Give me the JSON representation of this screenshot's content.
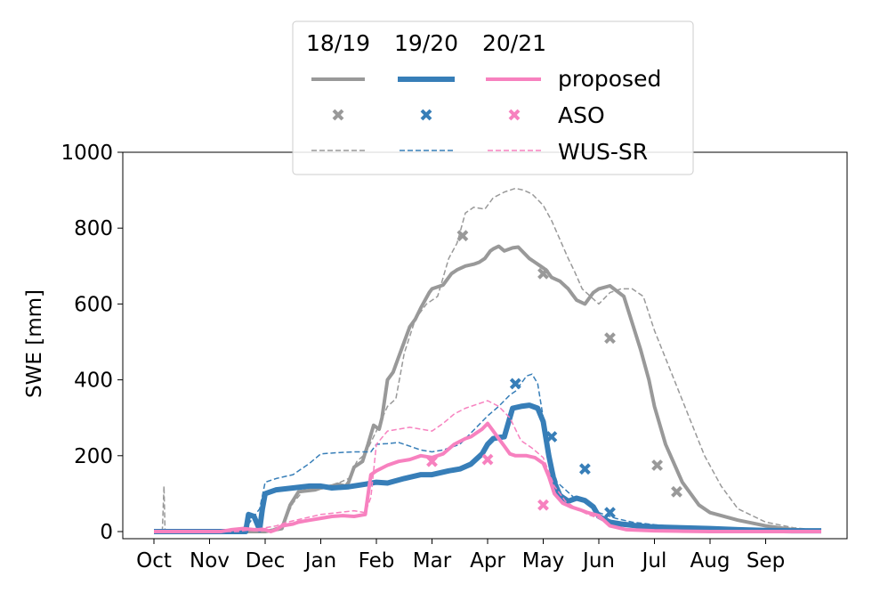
{
  "chart_data": {
    "type": "line",
    "title": "",
    "xlabel": "",
    "ylabel": "SWE [mm]",
    "ylim": [
      0,
      1000
    ],
    "yticks": [
      0,
      200,
      400,
      600,
      800,
      1000
    ],
    "xticks": [
      "Oct",
      "Nov",
      "Dec",
      "Jan",
      "Feb",
      "Mar",
      "Apr",
      "May",
      "Jun",
      "Jul",
      "Aug",
      "Sep"
    ],
    "grid": false,
    "legend": {
      "placement": "top-center",
      "column_headers": [
        "18/19",
        "19/20",
        "20/21"
      ],
      "row_labels": [
        "proposed",
        "ASO",
        "WUS-SR"
      ]
    },
    "colors": {
      "18/19": "#999999",
      "19/20": "#377eb8",
      "20/21": "#f781bf"
    },
    "series": [
      {
        "year": "18/19",
        "method": "proposed",
        "style": "solid",
        "x": [
          0,
          0.5,
          1,
          1.5,
          2,
          2.3,
          2.45,
          2.6,
          2.9,
          3.0,
          3.2,
          3.3,
          3.45,
          3.5,
          3.6,
          3.75,
          3.85,
          3.95,
          4.05,
          4.1,
          4.2,
          4.3,
          4.4,
          4.5,
          4.6,
          4.7,
          4.8,
          4.95,
          5.0,
          5.2,
          5.35,
          5.45,
          5.6,
          5.75,
          5.85,
          5.95,
          6.05,
          6.1,
          6.2,
          6.3,
          6.45,
          6.55,
          6.65,
          6.75,
          6.85,
          6.95,
          7.05,
          7.15,
          7.3,
          7.45,
          7.6,
          7.75,
          7.9,
          8.0,
          8.2,
          8.45,
          8.6,
          8.75,
          8.9,
          9.0,
          9.2,
          9.5,
          9.8,
          10,
          10.5,
          11,
          11.5,
          12
        ],
        "y": [
          0,
          0,
          0,
          0,
          0,
          8,
          70,
          105,
          110,
          115,
          120,
          125,
          120,
          130,
          170,
          185,
          230,
          280,
          270,
          300,
          400,
          420,
          460,
          500,
          540,
          560,
          590,
          630,
          640,
          650,
          680,
          690,
          700,
          705,
          710,
          720,
          740,
          745,
          752,
          740,
          748,
          750,
          735,
          720,
          710,
          700,
          690,
          670,
          660,
          640,
          610,
          600,
          630,
          640,
          648,
          620,
          550,
          480,
          400,
          330,
          230,
          130,
          70,
          50,
          30,
          15,
          5,
          2
        ]
      },
      {
        "year": "18/19",
        "method": "WUS-SR",
        "style": "dashed",
        "x": [
          0,
          0.15,
          0.18,
          0.2,
          0.3,
          0.5,
          1,
          1.5,
          2,
          2.3,
          2.5,
          2.7,
          3.0,
          3.2,
          3.5,
          3.65,
          3.8,
          4.0,
          4.2,
          4.35,
          4.5,
          4.7,
          4.9,
          5.1,
          5.3,
          5.45,
          5.6,
          5.75,
          5.95,
          6.1,
          6.3,
          6.5,
          6.65,
          6.8,
          7.0,
          7.15,
          7.3,
          7.45,
          7.55,
          7.7,
          7.85,
          8.0,
          8.2,
          8.4,
          8.6,
          8.8,
          9.0,
          9.3,
          9.6,
          9.9,
          10.2,
          10.5,
          11,
          11.5,
          12
        ],
        "y": [
          0,
          0,
          120,
          0,
          0,
          0,
          0,
          0,
          0,
          15,
          75,
          110,
          115,
          120,
          140,
          185,
          205,
          265,
          330,
          350,
          470,
          560,
          600,
          620,
          720,
          760,
          840,
          855,
          850,
          880,
          895,
          905,
          900,
          890,
          860,
          820,
          770,
          720,
          690,
          640,
          620,
          600,
          630,
          640,
          640,
          620,
          530,
          420,
          310,
          200,
          120,
          60,
          25,
          10,
          3
        ]
      },
      {
        "year": "19/20",
        "method": "proposed",
        "style": "solid",
        "x": [
          0,
          0.5,
          1,
          1.3,
          1.5,
          1.65,
          1.7,
          1.8,
          1.9,
          1.95,
          2.0,
          2.2,
          2.5,
          2.8,
          3.0,
          3.2,
          3.5,
          3.8,
          4.0,
          4.2,
          4.5,
          4.8,
          5.0,
          5.3,
          5.5,
          5.7,
          5.9,
          6.0,
          6.1,
          6.2,
          6.3,
          6.45,
          6.6,
          6.75,
          6.9,
          7.0,
          7.1,
          7.2,
          7.3,
          7.45,
          7.6,
          7.75,
          7.9,
          8.0,
          8.2,
          8.4,
          8.7,
          9.0,
          9.5,
          10,
          10.5,
          11,
          11.5,
          12
        ],
        "y": [
          0,
          0,
          0,
          0,
          0,
          0,
          45,
          40,
          5,
          60,
          100,
          110,
          115,
          120,
          120,
          115,
          118,
          125,
          130,
          128,
          140,
          150,
          150,
          160,
          165,
          178,
          205,
          230,
          245,
          248,
          250,
          325,
          330,
          333,
          325,
          290,
          200,
          130,
          95,
          80,
          88,
          82,
          65,
          40,
          25,
          20,
          15,
          12,
          10,
          8,
          5,
          3,
          2,
          2
        ]
      },
      {
        "year": "19/20",
        "method": "WUS-SR",
        "style": "dashed",
        "x": [
          0,
          0.5,
          1,
          1.5,
          1.7,
          1.9,
          2.0,
          2.2,
          2.5,
          2.8,
          3.0,
          3.3,
          3.6,
          3.9,
          4.0,
          4.2,
          4.4,
          4.6,
          4.8,
          5.0,
          5.2,
          5.5,
          5.8,
          6.0,
          6.2,
          6.4,
          6.5,
          6.6,
          6.7,
          6.8,
          6.9,
          7.0,
          7.1,
          7.25,
          7.4,
          7.55,
          7.7,
          7.85,
          8.0,
          8.3,
          8.6,
          9.0,
          9.5,
          10,
          10.5,
          11,
          11.5,
          12
        ],
        "y": [
          0,
          0,
          0,
          0,
          20,
          60,
          130,
          140,
          150,
          180,
          205,
          208,
          210,
          210,
          230,
          232,
          235,
          225,
          215,
          210,
          215,
          230,
          275,
          305,
          330,
          360,
          370,
          390,
          410,
          415,
          390,
          300,
          200,
          130,
          110,
          90,
          80,
          70,
          50,
          35,
          25,
          18,
          12,
          8,
          5,
          3,
          2,
          2
        ]
      },
      {
        "year": "20/21",
        "method": "proposed",
        "style": "solid",
        "x": [
          0,
          0.5,
          1,
          1.2,
          1.4,
          1.6,
          1.8,
          2.0,
          2.1,
          2.2,
          2.3,
          2.5,
          2.6,
          2.8,
          3.0,
          3.2,
          3.4,
          3.6,
          3.8,
          3.9,
          4.0,
          4.2,
          4.4,
          4.6,
          4.8,
          5.0,
          5.2,
          5.4,
          5.6,
          5.7,
          5.8,
          5.9,
          6.0,
          6.1,
          6.2,
          6.3,
          6.4,
          6.5,
          6.7,
          6.85,
          7.0,
          7.1,
          7.2,
          7.35,
          7.5,
          7.65,
          7.8,
          8.0,
          8.2,
          8.5,
          9.0,
          9.5,
          10,
          11,
          12
        ],
        "y": [
          0,
          0,
          0,
          0,
          5,
          8,
          5,
          5,
          0,
          5,
          15,
          20,
          25,
          30,
          35,
          40,
          42,
          40,
          45,
          150,
          160,
          175,
          185,
          190,
          200,
          195,
          205,
          230,
          245,
          250,
          260,
          270,
          285,
          265,
          245,
          225,
          205,
          200,
          200,
          195,
          180,
          145,
          100,
          75,
          65,
          58,
          50,
          42,
          15,
          5,
          2,
          1,
          0,
          0,
          0
        ]
      },
      {
        "year": "20/21",
        "method": "WUS-SR",
        "style": "dashed",
        "x": [
          0,
          0.5,
          1,
          1.5,
          2.0,
          2.2,
          2.4,
          2.7,
          3.0,
          3.3,
          3.6,
          3.8,
          3.9,
          4.0,
          4.2,
          4.4,
          4.6,
          4.8,
          5.0,
          5.2,
          5.4,
          5.6,
          5.8,
          6.0,
          6.2,
          6.4,
          6.6,
          6.8,
          7.0,
          7.2,
          7.4,
          7.6,
          7.8,
          8.0,
          8.2,
          8.5,
          9.0,
          10,
          11,
          12
        ],
        "y": [
          0,
          0,
          0,
          0,
          10,
          15,
          25,
          35,
          45,
          50,
          55,
          50,
          90,
          230,
          265,
          270,
          275,
          270,
          265,
          285,
          310,
          325,
          335,
          345,
          330,
          300,
          240,
          220,
          195,
          120,
          80,
          60,
          45,
          35,
          15,
          5,
          2,
          0,
          0,
          0
        ]
      }
    ],
    "aso": [
      {
        "year": "18/19",
        "x": [
          5.55,
          7.0,
          8.2,
          9.05,
          9.4
        ],
        "y": [
          780,
          680,
          510,
          175,
          105
        ]
      },
      {
        "year": "19/20",
        "x": [
          6.5,
          7.15,
          7.75,
          8.2
        ],
        "y": [
          390,
          250,
          165,
          50
        ]
      },
      {
        "year": "20/21",
        "x": [
          5.0,
          6.0,
          7.0
        ],
        "y": [
          185,
          190,
          70
        ]
      }
    ]
  }
}
